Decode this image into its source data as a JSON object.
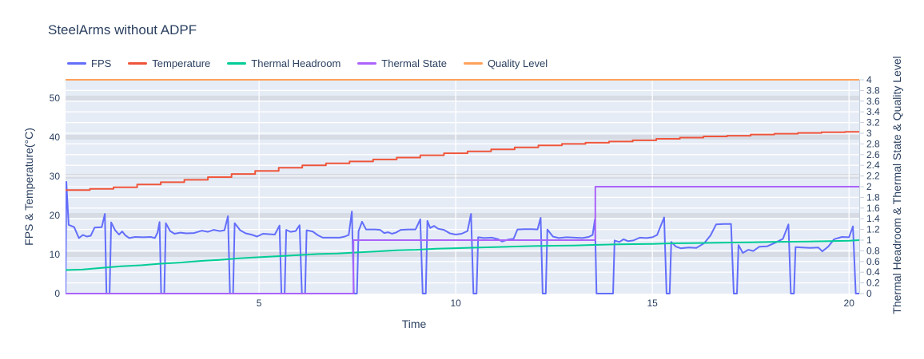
{
  "title": "SteelArms without ADPF",
  "chart_data": {
    "type": "line",
    "title": "SteelArms without ADPF",
    "xlabel": "Time",
    "ylabel_left": "FPS & Temperature(°C)",
    "ylabel_right": "Thermal Headroom & Thermal State & Quality Level",
    "legend_position": "top-left horizontal",
    "grid": "white horizontal lines every 0.2 (right axis), gray bands at left ticks, white vertical lines at x ticks",
    "plot_bg": "#e5ecf6",
    "grid_band_color": "#d6dbe4",
    "grid_line_color": "#ffffff",
    "axis_text_color": "#2a3f5f",
    "x_range": [
      0.08,
      20.26
    ],
    "y_left_range": [
      0,
      54.7
    ],
    "y_right_range": [
      0,
      4
    ],
    "x_ticks": [
      5,
      10,
      15,
      20
    ],
    "y_left_ticks": [
      0,
      10,
      20,
      30,
      40,
      50
    ],
    "y_right_ticks": [
      0,
      0.2,
      0.4,
      0.6,
      0.8,
      1,
      1.2,
      1.4,
      1.6,
      1.8,
      2,
      2.2,
      2.4,
      2.6,
      2.8,
      3,
      3.2,
      3.4,
      3.6,
      3.8,
      4
    ],
    "series": [
      {
        "name": "FPS",
        "color": "#636efa",
        "axis": "left",
        "mode": "line",
        "points": [
          [
            0.08,
            0
          ],
          [
            0.1,
            28.6
          ],
          [
            0.16,
            17.6
          ],
          [
            0.3,
            17.0
          ],
          [
            0.42,
            14.2
          ],
          [
            0.52,
            15.0
          ],
          [
            0.62,
            14.6
          ],
          [
            0.72,
            14.8
          ],
          [
            0.82,
            16.9
          ],
          [
            1.0,
            17.0
          ],
          [
            1.08,
            20.4
          ],
          [
            1.12,
            0
          ],
          [
            1.2,
            0
          ],
          [
            1.24,
            18.2
          ],
          [
            1.34,
            16.2
          ],
          [
            1.44,
            15.1
          ],
          [
            1.52,
            15.9
          ],
          [
            1.6,
            14.9
          ],
          [
            1.7,
            14.2
          ],
          [
            1.85,
            14.5
          ],
          [
            2.05,
            14.4
          ],
          [
            2.25,
            14.5
          ],
          [
            2.35,
            14.2
          ],
          [
            2.42,
            15.6
          ],
          [
            2.47,
            18.3
          ],
          [
            2.51,
            0
          ],
          [
            2.59,
            0
          ],
          [
            2.63,
            18.0
          ],
          [
            2.74,
            16.0
          ],
          [
            2.85,
            15.3
          ],
          [
            3.0,
            15.6
          ],
          [
            3.15,
            15.4
          ],
          [
            3.35,
            15.5
          ],
          [
            3.55,
            16.1
          ],
          [
            3.7,
            15.8
          ],
          [
            3.85,
            16.3
          ],
          [
            4.0,
            16.0
          ],
          [
            4.12,
            16.2
          ],
          [
            4.21,
            19.8
          ],
          [
            4.26,
            0
          ],
          [
            4.34,
            0
          ],
          [
            4.38,
            18.0
          ],
          [
            4.52,
            16.2
          ],
          [
            4.66,
            15.4
          ],
          [
            4.8,
            15.1
          ],
          [
            4.95,
            14.6
          ],
          [
            5.1,
            15.3
          ],
          [
            5.25,
            15.2
          ],
          [
            5.4,
            15.1
          ],
          [
            5.52,
            17.4
          ],
          [
            5.57,
            0
          ],
          [
            5.65,
            0
          ],
          [
            5.69,
            16.3
          ],
          [
            5.8,
            15.8
          ],
          [
            5.93,
            16.0
          ],
          [
            6.03,
            17.5
          ],
          [
            6.09,
            0
          ],
          [
            6.17,
            0
          ],
          [
            6.21,
            16.2
          ],
          [
            6.36,
            15.9
          ],
          [
            6.5,
            14.9
          ],
          [
            6.62,
            14.3
          ],
          [
            6.85,
            14.3
          ],
          [
            7.05,
            14.3
          ],
          [
            7.18,
            14.6
          ],
          [
            7.28,
            15.0
          ],
          [
            7.36,
            21.0
          ],
          [
            7.41,
            0
          ],
          [
            7.49,
            0
          ],
          [
            7.53,
            16.0
          ],
          [
            7.62,
            18.4
          ],
          [
            7.72,
            16.4
          ],
          [
            7.95,
            16.4
          ],
          [
            8.08,
            16.3
          ],
          [
            8.18,
            15.5
          ],
          [
            8.28,
            15.7
          ],
          [
            8.38,
            15.3
          ],
          [
            8.48,
            15.6
          ],
          [
            8.6,
            16.3
          ],
          [
            8.8,
            16.4
          ],
          [
            8.98,
            16.4
          ],
          [
            9.1,
            19.0
          ],
          [
            9.16,
            0
          ],
          [
            9.24,
            0
          ],
          [
            9.28,
            18.6
          ],
          [
            9.35,
            16.8
          ],
          [
            9.45,
            17.3
          ],
          [
            9.55,
            16.6
          ],
          [
            9.7,
            16.3
          ],
          [
            9.85,
            15.4
          ],
          [
            10.0,
            15.1
          ],
          [
            10.15,
            15.3
          ],
          [
            10.3,
            16.0
          ],
          [
            10.39,
            20.4
          ],
          [
            10.45,
            0
          ],
          [
            10.53,
            0
          ],
          [
            10.57,
            14.4
          ],
          [
            10.72,
            14.2
          ],
          [
            10.92,
            14.3
          ],
          [
            11.08,
            13.9
          ],
          [
            11.18,
            13.3
          ],
          [
            11.32,
            13.8
          ],
          [
            11.47,
            14.0
          ],
          [
            11.57,
            16.4
          ],
          [
            11.75,
            16.5
          ],
          [
            11.95,
            16.5
          ],
          [
            12.08,
            16.4
          ],
          [
            12.16,
            19.4
          ],
          [
            12.21,
            0
          ],
          [
            12.29,
            0
          ],
          [
            12.33,
            16.4
          ],
          [
            12.47,
            14.6
          ],
          [
            12.62,
            14.2
          ],
          [
            12.82,
            14.4
          ],
          [
            13.02,
            14.3
          ],
          [
            13.22,
            14.2
          ],
          [
            13.38,
            14.5
          ],
          [
            13.48,
            15.0
          ],
          [
            13.54,
            19.0
          ],
          [
            13.58,
            0
          ],
          [
            14.0,
            0
          ],
          [
            14.04,
            13.6
          ],
          [
            14.16,
            13.2
          ],
          [
            14.27,
            13.9
          ],
          [
            14.38,
            13.4
          ],
          [
            14.52,
            13.6
          ],
          [
            14.68,
            14.3
          ],
          [
            14.85,
            14.2
          ],
          [
            15.0,
            14.4
          ],
          [
            15.12,
            15.0
          ],
          [
            15.3,
            19.5
          ],
          [
            15.36,
            0
          ],
          [
            15.44,
            0
          ],
          [
            15.48,
            13.2
          ],
          [
            15.6,
            12.0
          ],
          [
            15.72,
            11.6
          ],
          [
            15.92,
            11.8
          ],
          [
            16.12,
            11.7
          ],
          [
            16.32,
            12.9
          ],
          [
            16.48,
            14.9
          ],
          [
            16.62,
            17.7
          ],
          [
            16.82,
            17.8
          ],
          [
            17.0,
            17.8
          ],
          [
            17.07,
            0
          ],
          [
            17.15,
            0
          ],
          [
            17.19,
            12.4
          ],
          [
            17.3,
            10.4
          ],
          [
            17.44,
            11.2
          ],
          [
            17.57,
            10.9
          ],
          [
            17.72,
            12.0
          ],
          [
            17.92,
            12.1
          ],
          [
            18.12,
            13.0
          ],
          [
            18.32,
            14.0
          ],
          [
            18.46,
            17.7
          ],
          [
            18.52,
            0
          ],
          [
            18.6,
            0
          ],
          [
            18.64,
            11.9
          ],
          [
            18.82,
            11.8
          ],
          [
            19.02,
            11.7
          ],
          [
            19.22,
            11.8
          ],
          [
            19.32,
            10.8
          ],
          [
            19.47,
            12.0
          ],
          [
            19.62,
            13.9
          ],
          [
            19.82,
            14.5
          ],
          [
            20.0,
            14.4
          ],
          [
            20.1,
            17.2
          ],
          [
            20.17,
            0
          ],
          [
            20.26,
            0
          ]
        ]
      },
      {
        "name": "Temperature",
        "color": "#ef553b",
        "axis": "left",
        "mode": "step",
        "points": [
          [
            0.08,
            26.5
          ],
          [
            0.7,
            26.8
          ],
          [
            1.3,
            27.2
          ],
          [
            1.9,
            27.9
          ],
          [
            2.5,
            28.5
          ],
          [
            3.1,
            29.1
          ],
          [
            3.7,
            29.8
          ],
          [
            4.3,
            30.6
          ],
          [
            4.9,
            31.4
          ],
          [
            5.5,
            32.2
          ],
          [
            6.1,
            32.8
          ],
          [
            6.7,
            33.3
          ],
          [
            7.3,
            33.8
          ],
          [
            7.9,
            34.3
          ],
          [
            8.5,
            34.8
          ],
          [
            9.1,
            35.4
          ],
          [
            9.7,
            35.9
          ],
          [
            10.3,
            36.4
          ],
          [
            10.9,
            36.9
          ],
          [
            11.5,
            37.4
          ],
          [
            12.1,
            37.9
          ],
          [
            12.7,
            38.3
          ],
          [
            13.3,
            38.6
          ],
          [
            13.9,
            38.9
          ],
          [
            14.5,
            39.2
          ],
          [
            15.1,
            39.6
          ],
          [
            15.7,
            39.9
          ],
          [
            16.3,
            40.2
          ],
          [
            16.9,
            40.4
          ],
          [
            17.5,
            40.7
          ],
          [
            18.1,
            40.9
          ],
          [
            18.7,
            41.1
          ],
          [
            19.3,
            41.3
          ],
          [
            19.9,
            41.4
          ],
          [
            20.26,
            41.5
          ]
        ]
      },
      {
        "name": "Thermal Headroom",
        "color": "#00cc96",
        "axis": "right",
        "mode": "line",
        "points": [
          [
            0.08,
            0.44
          ],
          [
            0.5,
            0.45
          ],
          [
            1.0,
            0.48
          ],
          [
            1.5,
            0.51
          ],
          [
            2.0,
            0.53
          ],
          [
            2.5,
            0.56
          ],
          [
            3.0,
            0.58
          ],
          [
            3.5,
            0.61
          ],
          [
            4.0,
            0.63
          ],
          [
            4.5,
            0.66
          ],
          [
            5.0,
            0.68
          ],
          [
            5.5,
            0.7
          ],
          [
            6.0,
            0.72
          ],
          [
            6.5,
            0.74
          ],
          [
            7.0,
            0.75
          ],
          [
            7.5,
            0.77
          ],
          [
            8.0,
            0.79
          ],
          [
            8.5,
            0.81
          ],
          [
            9.0,
            0.82
          ],
          [
            9.5,
            0.84
          ],
          [
            10.0,
            0.85
          ],
          [
            10.5,
            0.86
          ],
          [
            11.0,
            0.87
          ],
          [
            11.5,
            0.88
          ],
          [
            12.0,
            0.89
          ],
          [
            12.5,
            0.895
          ],
          [
            13.0,
            0.9
          ],
          [
            13.5,
            0.91
          ],
          [
            14.0,
            0.92
          ],
          [
            14.5,
            0.925
          ],
          [
            15.0,
            0.93
          ],
          [
            15.5,
            0.94
          ],
          [
            16.0,
            0.945
          ],
          [
            16.5,
            0.95
          ],
          [
            17.0,
            0.955
          ],
          [
            17.5,
            0.96
          ],
          [
            18.0,
            0.965
          ],
          [
            18.5,
            0.97
          ],
          [
            19.0,
            0.975
          ],
          [
            19.5,
            0.98
          ],
          [
            20.0,
            0.99
          ],
          [
            20.26,
            1.0
          ]
        ]
      },
      {
        "name": "Thermal State",
        "color": "#ab63fa",
        "axis": "right",
        "mode": "step",
        "points": [
          [
            0.08,
            0
          ],
          [
            7.4,
            1
          ],
          [
            13.55,
            2
          ],
          [
            20.26,
            2
          ]
        ]
      },
      {
        "name": "Quality Level",
        "color": "#ffa15a",
        "axis": "right",
        "mode": "line",
        "points": [
          [
            0.08,
            4
          ],
          [
            20.26,
            4
          ]
        ]
      }
    ]
  }
}
